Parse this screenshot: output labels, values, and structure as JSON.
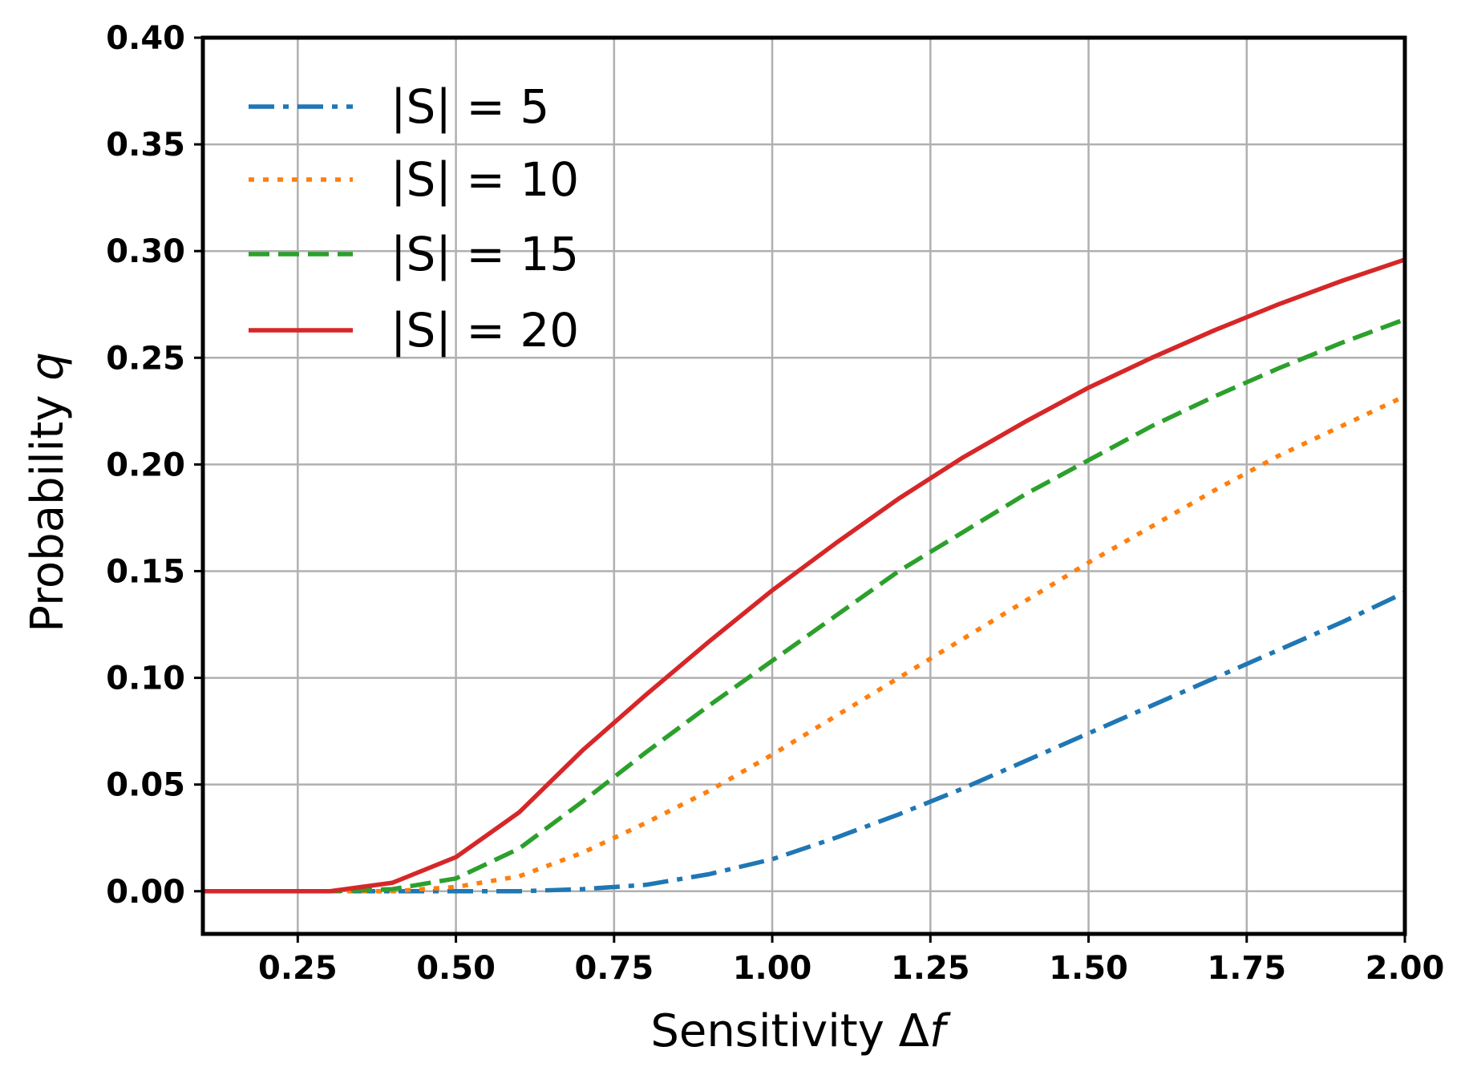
{
  "chart_data": {
    "type": "line",
    "xlabel_main": "Sensitivity Δ",
    "xlabel_var": "f",
    "ylabel_main": "Probability ",
    "ylabel_var": "q",
    "xlim": [
      0.1,
      2.0
    ],
    "ylim": [
      -0.02,
      0.4
    ],
    "xticks": [
      "0.25",
      "0.50",
      "0.75",
      "1.00",
      "1.25",
      "1.50",
      "1.75",
      "2.00"
    ],
    "yticks": [
      "0.00",
      "0.05",
      "0.10",
      "0.15",
      "0.20",
      "0.25",
      "0.30",
      "0.35",
      "0.40"
    ],
    "grid": true,
    "legend_position": "upper-left",
    "x": [
      0.1,
      0.2,
      0.3,
      0.4,
      0.5,
      0.6,
      0.7,
      0.8,
      0.9,
      1.0,
      1.1,
      1.2,
      1.3,
      1.4,
      1.5,
      1.6,
      1.7,
      1.8,
      1.9,
      2.0
    ],
    "series": [
      {
        "name": "|S| = 5",
        "color": "#1f77b4",
        "style": "dashdot",
        "values": [
          0.0,
          0.0,
          0.0,
          0.0,
          0.0,
          0.0,
          0.001,
          0.003,
          0.008,
          0.015,
          0.025,
          0.036,
          0.048,
          0.061,
          0.074,
          0.087,
          0.1,
          0.113,
          0.126,
          0.14
        ]
      },
      {
        "name": "|S| = 10",
        "color": "#ff7f0e",
        "style": "dotted",
        "values": [
          0.0,
          0.0,
          0.0,
          0.0,
          0.002,
          0.007,
          0.018,
          0.032,
          0.047,
          0.064,
          0.082,
          0.1,
          0.118,
          0.136,
          0.154,
          0.171,
          0.188,
          0.204,
          0.218,
          0.232
        ]
      },
      {
        "name": "|S| = 15",
        "color": "#2ca02c",
        "style": "dashed",
        "values": [
          0.0,
          0.0,
          0.0,
          0.001,
          0.006,
          0.02,
          0.042,
          0.065,
          0.087,
          0.108,
          0.129,
          0.15,
          0.168,
          0.186,
          0.202,
          0.218,
          0.232,
          0.245,
          0.257,
          0.268
        ]
      },
      {
        "name": "|S| = 20",
        "color": "#d62728",
        "style": "solid",
        "values": [
          0.0,
          0.0,
          0.0,
          0.004,
          0.016,
          0.037,
          0.066,
          0.092,
          0.117,
          0.141,
          0.163,
          0.184,
          0.203,
          0.22,
          0.236,
          0.25,
          0.263,
          0.275,
          0.286,
          0.296
        ]
      }
    ]
  }
}
